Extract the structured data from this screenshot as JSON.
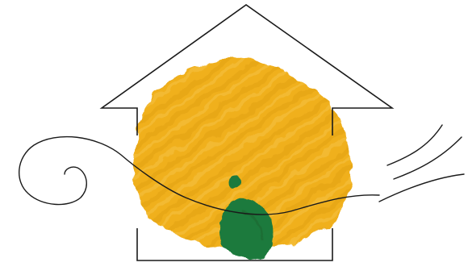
{
  "illustration": {
    "colors": {
      "background": "#ffffff",
      "outline": "#1a1a1a",
      "blob": "#f0b01e",
      "blob_dark": "#d9960f",
      "blob_light": "#f7c64a",
      "figure": "#1f7a3c",
      "figure_dark": "#16612f"
    },
    "icons": [
      "house-outline-icon",
      "wind-swirl-icon",
      "wind-lines-icon"
    ]
  }
}
